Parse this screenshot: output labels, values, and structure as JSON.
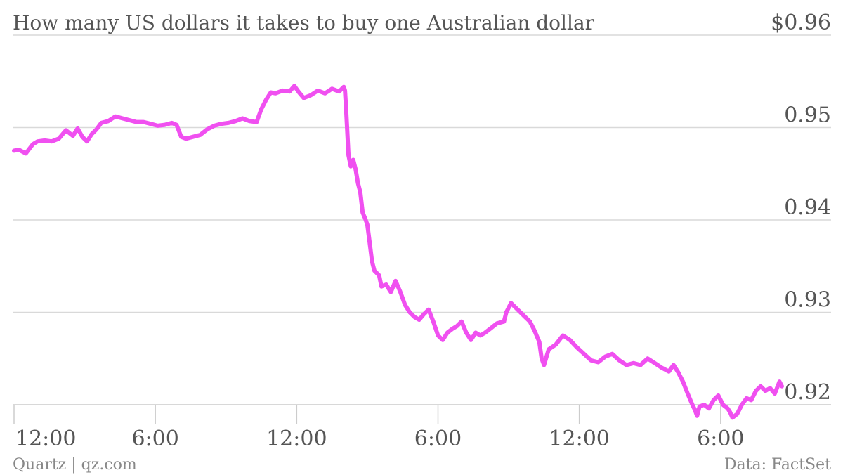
{
  "chart_data": {
    "type": "line",
    "title": "How many US dollars it takes to buy one Australian dollar",
    "xlabel": "",
    "ylabel": "",
    "ylim": [
      0.9185,
      0.96
    ],
    "ytick_values": [
      0.96,
      0.95,
      0.94,
      0.93,
      0.92
    ],
    "ytick_labels": [
      "$0.96",
      "0.95",
      "0.94",
      "0.93",
      "0.92"
    ],
    "xtick_positions": [
      0,
      6,
      12,
      18,
      24,
      30
    ],
    "xtick_labels": [
      "12:00",
      "6:00",
      "12:00",
      "6:00",
      "12:00",
      "6:00"
    ],
    "xlim": [
      0,
      32.6
    ],
    "grid": true,
    "series": [
      {
        "color": "#f050f0",
        "points": [
          [
            0.0,
            0.9475
          ],
          [
            0.2,
            0.9476
          ],
          [
            0.5,
            0.9472
          ],
          [
            0.8,
            0.9482
          ],
          [
            1.0,
            0.9485
          ],
          [
            1.3,
            0.9486
          ],
          [
            1.6,
            0.9485
          ],
          [
            1.9,
            0.9488
          ],
          [
            2.2,
            0.9497
          ],
          [
            2.5,
            0.9491
          ],
          [
            2.7,
            0.9499
          ],
          [
            2.9,
            0.949
          ],
          [
            3.1,
            0.9485
          ],
          [
            3.3,
            0.9493
          ],
          [
            3.5,
            0.9498
          ],
          [
            3.7,
            0.9505
          ],
          [
            4.0,
            0.9507
          ],
          [
            4.3,
            0.9512
          ],
          [
            4.6,
            0.951
          ],
          [
            4.9,
            0.9508
          ],
          [
            5.2,
            0.9506
          ],
          [
            5.5,
            0.9506
          ],
          [
            5.8,
            0.9504
          ],
          [
            6.1,
            0.9502
          ],
          [
            6.4,
            0.9503
          ],
          [
            6.7,
            0.9505
          ],
          [
            6.9,
            0.9503
          ],
          [
            7.1,
            0.949
          ],
          [
            7.3,
            0.9488
          ],
          [
            7.6,
            0.949
          ],
          [
            7.9,
            0.9492
          ],
          [
            8.2,
            0.9498
          ],
          [
            8.5,
            0.9502
          ],
          [
            8.8,
            0.9504
          ],
          [
            9.1,
            0.9505
          ],
          [
            9.4,
            0.9507
          ],
          [
            9.7,
            0.951
          ],
          [
            10.0,
            0.9507
          ],
          [
            10.3,
            0.9506
          ],
          [
            10.5,
            0.952
          ],
          [
            10.7,
            0.953
          ],
          [
            10.9,
            0.9538
          ],
          [
            11.1,
            0.9537
          ],
          [
            11.4,
            0.954
          ],
          [
            11.7,
            0.9539
          ],
          [
            11.9,
            0.9545
          ],
          [
            12.1,
            0.9538
          ],
          [
            12.3,
            0.9532
          ],
          [
            12.6,
            0.9535
          ],
          [
            12.9,
            0.954
          ],
          [
            13.2,
            0.9537
          ],
          [
            13.5,
            0.9542
          ],
          [
            13.8,
            0.9539
          ],
          [
            14.0,
            0.9544
          ],
          [
            14.05,
            0.954
          ],
          [
            14.1,
            0.952
          ],
          [
            14.15,
            0.9495
          ],
          [
            14.2,
            0.947
          ],
          [
            14.3,
            0.9458
          ],
          [
            14.4,
            0.9465
          ],
          [
            14.5,
            0.9455
          ],
          [
            14.6,
            0.944
          ],
          [
            14.7,
            0.943
          ],
          [
            14.8,
            0.9408
          ],
          [
            14.9,
            0.9402
          ],
          [
            15.0,
            0.9395
          ],
          [
            15.1,
            0.9375
          ],
          [
            15.2,
            0.9355
          ],
          [
            15.3,
            0.9345
          ],
          [
            15.5,
            0.934
          ],
          [
            15.6,
            0.9328
          ],
          [
            15.8,
            0.933
          ],
          [
            16.0,
            0.9322
          ],
          [
            16.2,
            0.9334
          ],
          [
            16.4,
            0.9322
          ],
          [
            16.6,
            0.9308
          ],
          [
            16.8,
            0.93
          ],
          [
            17.0,
            0.9295
          ],
          [
            17.2,
            0.9292
          ],
          [
            17.4,
            0.9298
          ],
          [
            17.6,
            0.9303
          ],
          [
            17.8,
            0.929
          ],
          [
            18.0,
            0.9275
          ],
          [
            18.2,
            0.927
          ],
          [
            18.4,
            0.9278
          ],
          [
            18.6,
            0.9282
          ],
          [
            18.8,
            0.9285
          ],
          [
            19.0,
            0.929
          ],
          [
            19.2,
            0.9278
          ],
          [
            19.4,
            0.927
          ],
          [
            19.6,
            0.9278
          ],
          [
            19.8,
            0.9275
          ],
          [
            20.0,
            0.9278
          ],
          [
            20.2,
            0.9282
          ],
          [
            20.5,
            0.9288
          ],
          [
            20.8,
            0.929
          ],
          [
            20.9,
            0.93
          ],
          [
            21.1,
            0.931
          ],
          [
            21.3,
            0.9305
          ],
          [
            21.5,
            0.93
          ],
          [
            21.7,
            0.9295
          ],
          [
            21.9,
            0.929
          ],
          [
            22.1,
            0.928
          ],
          [
            22.3,
            0.9268
          ],
          [
            22.4,
            0.925
          ],
          [
            22.5,
            0.9243
          ],
          [
            22.7,
            0.926
          ],
          [
            23.0,
            0.9265
          ],
          [
            23.3,
            0.9275
          ],
          [
            23.6,
            0.927
          ],
          [
            23.9,
            0.9262
          ],
          [
            24.2,
            0.9255
          ],
          [
            24.5,
            0.9248
          ],
          [
            24.8,
            0.9246
          ],
          [
            25.1,
            0.9252
          ],
          [
            25.4,
            0.9255
          ],
          [
            25.7,
            0.9248
          ],
          [
            26.0,
            0.9243
          ],
          [
            26.3,
            0.9245
          ],
          [
            26.6,
            0.9243
          ],
          [
            26.9,
            0.925
          ],
          [
            27.2,
            0.9245
          ],
          [
            27.5,
            0.924
          ],
          [
            27.8,
            0.9236
          ],
          [
            28.0,
            0.9243
          ],
          [
            28.2,
            0.9235
          ],
          [
            28.4,
            0.9225
          ],
          [
            28.6,
            0.9212
          ],
          [
            28.8,
            0.92
          ],
          [
            28.9,
            0.9195
          ],
          [
            29.0,
            0.9188
          ],
          [
            29.1,
            0.9198
          ],
          [
            29.3,
            0.92
          ],
          [
            29.5,
            0.9196
          ],
          [
            29.7,
            0.9205
          ],
          [
            29.9,
            0.921
          ],
          [
            30.1,
            0.92
          ],
          [
            30.3,
            0.9196
          ],
          [
            30.4,
            0.9192
          ],
          [
            30.5,
            0.9186
          ],
          [
            30.7,
            0.919
          ],
          [
            30.9,
            0.92
          ],
          [
            31.1,
            0.9207
          ],
          [
            31.3,
            0.9205
          ],
          [
            31.5,
            0.9215
          ],
          [
            31.7,
            0.922
          ],
          [
            31.9,
            0.9215
          ],
          [
            32.1,
            0.9218
          ],
          [
            32.3,
            0.9212
          ],
          [
            32.5,
            0.9225
          ],
          [
            32.6,
            0.922
          ]
        ]
      }
    ]
  },
  "footer": {
    "source_left": "Quartz | qz.com",
    "source_right": "Data: FactSet"
  }
}
